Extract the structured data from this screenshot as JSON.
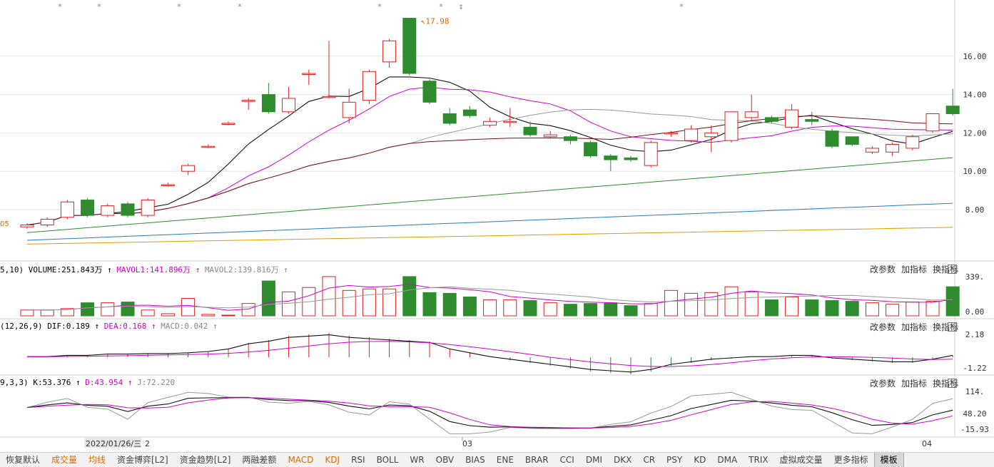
{
  "chart_data": {
    "type": "candlestick",
    "main": {
      "price_axis_ticks": [
        "16.00",
        "14.00",
        "12.00",
        "10.00",
        "8.00"
      ],
      "max_label": "17.98",
      "left_label": "05",
      "candles": [
        [
          7.1,
          7.2,
          7.0,
          7.3
        ],
        [
          7.2,
          7.5,
          7.1,
          7.6
        ],
        [
          7.6,
          8.4,
          7.5,
          8.5
        ],
        [
          8.5,
          7.7,
          7.6,
          8.6
        ],
        [
          7.7,
          8.2,
          7.6,
          8.3
        ],
        [
          8.3,
          7.7,
          7.6,
          8.4
        ],
        [
          7.7,
          8.5,
          7.6,
          8.6
        ],
        [
          9.3,
          9.3,
          9.2,
          9.4
        ],
        [
          10.0,
          10.3,
          9.8,
          10.4
        ],
        [
          11.3,
          11.3,
          11.2,
          11.4
        ],
        [
          12.5,
          12.5,
          12.4,
          12.6
        ],
        [
          13.7,
          13.7,
          13.2,
          13.8
        ],
        [
          14.0,
          13.1,
          13.0,
          14.6
        ],
        [
          13.1,
          13.8,
          13.0,
          14.4
        ],
        [
          15.1,
          15.1,
          14.5,
          15.3
        ],
        [
          13.9,
          13.9,
          13.8,
          16.8
        ],
        [
          12.8,
          13.6,
          12.5,
          14.3
        ],
        [
          13.7,
          15.2,
          13.5,
          15.3
        ],
        [
          15.7,
          16.8,
          15.4,
          16.9
        ],
        [
          17.98,
          15.1,
          15.0,
          17.98
        ],
        [
          14.7,
          13.6,
          13.5,
          14.8
        ],
        [
          13.0,
          12.5,
          12.4,
          13.3
        ],
        [
          13.2,
          12.9,
          12.8,
          13.4
        ],
        [
          12.4,
          12.6,
          12.3,
          12.8
        ],
        [
          12.6,
          12.6,
          12.3,
          13.3
        ],
        [
          12.3,
          11.9,
          11.8,
          12.6
        ],
        [
          11.8,
          11.9,
          11.7,
          12.1
        ],
        [
          11.8,
          11.6,
          11.4,
          11.9
        ],
        [
          11.5,
          10.8,
          10.7,
          11.6
        ],
        [
          10.8,
          10.6,
          10.0,
          10.9
        ],
        [
          10.7,
          10.6,
          10.5,
          10.8
        ],
        [
          10.3,
          11.5,
          10.2,
          11.6
        ],
        [
          12.0,
          12.0,
          11.8,
          12.1
        ],
        [
          11.6,
          12.2,
          11.5,
          12.4
        ],
        [
          11.8,
          12.0,
          11.0,
          12.4
        ],
        [
          11.6,
          13.1,
          11.5,
          13.1
        ],
        [
          12.8,
          13.1,
          12.6,
          14.0
        ],
        [
          12.8,
          12.6,
          12.5,
          12.9
        ],
        [
          12.3,
          13.2,
          12.2,
          13.5
        ],
        [
          12.7,
          12.6,
          12.4,
          13.1
        ],
        [
          12.1,
          11.3,
          11.2,
          12.2
        ],
        [
          11.8,
          11.4,
          11.3,
          11.8
        ],
        [
          11.0,
          11.2,
          10.9,
          11.3
        ],
        [
          11.0,
          11.4,
          10.8,
          11.5
        ],
        [
          11.2,
          11.8,
          11.1,
          11.9
        ],
        [
          12.1,
          13.0,
          12.0,
          13.0
        ],
        [
          13.4,
          13.0,
          12.9,
          14.3
        ]
      ]
    },
    "volume": {
      "axis_ticks": [
        "339.",
        "0.00"
      ],
      "values": [
        8,
        8,
        10,
        18,
        18,
        19,
        8,
        3,
        24,
        2,
        1,
        17,
        48,
        33,
        39,
        54,
        35,
        37,
        37,
        54,
        32,
        31,
        26,
        22,
        22,
        21,
        18,
        16,
        17,
        18,
        14,
        17,
        35,
        31,
        32,
        40,
        33,
        22,
        26,
        22,
        21,
        20,
        18,
        16,
        19,
        20,
        40
      ]
    },
    "macd": {
      "axis_ticks": [
        "2.18",
        "-1.22"
      ],
      "hist": [
        0.0,
        0.0,
        0.05,
        0.05,
        0.1,
        0.1,
        0.12,
        0.12,
        0.15,
        0.2,
        0.3,
        0.5,
        0.6,
        0.75,
        0.8,
        0.85,
        0.75,
        0.7,
        0.65,
        0.6,
        0.55,
        0.3,
        0.15,
        0.0,
        -0.1,
        -0.2,
        -0.3,
        -0.4,
        -0.5,
        -0.55,
        -0.6,
        -0.5,
        -0.3,
        -0.2,
        -0.1,
        -0.05,
        0.0,
        0.0,
        0.05,
        0.05,
        -0.05,
        -0.1,
        -0.15,
        -0.2,
        -0.2,
        -0.1,
        0.05
      ]
    },
    "kdj": {
      "axis_ticks": [
        "114.",
        "48.20",
        "-15.93"
      ]
    }
  },
  "indicator_lines": {
    "volume": {
      "prefix": "5,10)",
      "vol": "VOLUME:251.843万",
      "mavol1": "MAVOL1:141.896万",
      "mavol2": "MAVOL2:139.816万"
    },
    "macd": {
      "prefix": "(12,26,9)",
      "dif": "DIF:0.189",
      "dea": "DEA:0.168",
      "macd": "MACD:0.042"
    },
    "kdj": {
      "prefix": "9,3,3)",
      "k": "K:53.376",
      "d": "D:43.954",
      "j": "J:72.220"
    }
  },
  "panel_controls": {
    "params": "改参数",
    "add": "加指标",
    "switch": "换指标",
    "close": "×"
  },
  "arrow": "↑",
  "date_axis": {
    "first": "2022/01/26/三",
    "first_suffix": "2",
    "mid": "03",
    "last": "04"
  },
  "toolbar": [
    "恢复默认",
    "成交量",
    "均线",
    "资金博弈[L2]",
    "资金趋势[L2]",
    "两融差额",
    "MACD",
    "KDJ",
    "RSI",
    "BOLL",
    "WR",
    "OBV",
    "BIAS",
    "ENE",
    "BRAR",
    "CCI",
    "DMI",
    "DKX",
    "CR",
    "PSY",
    "KD",
    "DMA",
    "TRIX",
    "虚拟成交量",
    "更多指标",
    "模板"
  ],
  "colors": {
    "up": "#e02020",
    "down": "#2e8b2e",
    "magenta": "#d000d0",
    "grid": "#e6e6e6",
    "orange_label": "#d86a00"
  }
}
